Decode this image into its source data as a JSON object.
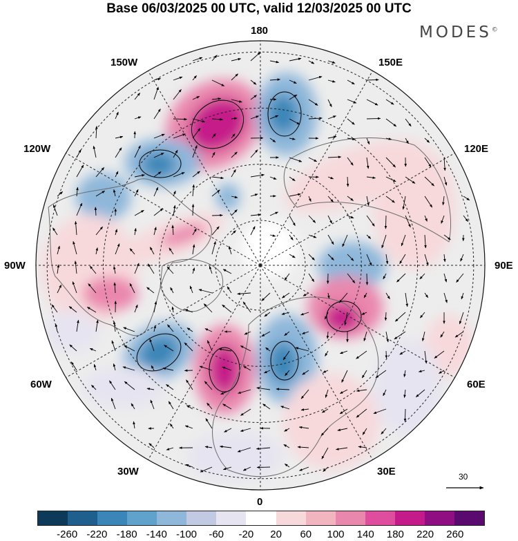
{
  "title": "Base 06/03/2025 00 UTC, valid 12/03/2025 00 UTC",
  "brand": "MODES",
  "brand_mark": "©",
  "map_labels": {
    "top": "180",
    "bottom": "0",
    "left": "90W",
    "right": "90E",
    "upper_left_1": "150W",
    "upper_left_2": "120W",
    "lower_left_1": "60W",
    "lower_left_2": "30W",
    "upper_right_1": "150E",
    "upper_right_2": "120E",
    "lower_right_1": "60E",
    "lower_right_2": "30E"
  },
  "reference_vector": "30",
  "colorbar": {
    "colors": [
      "#0e3a5a",
      "#1f5f8e",
      "#3a86b8",
      "#5fa3cd",
      "#8eb7da",
      "#c2c9e2",
      "#e6e4f0",
      "#ffffff",
      "#f7d9dc",
      "#f2b5bf",
      "#ea87ad",
      "#df4d9e",
      "#c51a8a",
      "#8f0f83",
      "#5a0a6e"
    ],
    "tick_labels": [
      "-260",
      "-220",
      "-180",
      "-140",
      "-100",
      "-60",
      "-20",
      "20",
      "60",
      "100",
      "140",
      "180",
      "220",
      "260"
    ]
  },
  "anomaly_colors": {
    "strong_positive": "#c51a8a",
    "positive": "#ea87ad",
    "weak_positive": "#f7d9dc",
    "strong_negative": "#3a86b8",
    "negative": "#8eb7da",
    "weak_negative": "#e6e4f0",
    "neutral": "#ededed"
  }
}
